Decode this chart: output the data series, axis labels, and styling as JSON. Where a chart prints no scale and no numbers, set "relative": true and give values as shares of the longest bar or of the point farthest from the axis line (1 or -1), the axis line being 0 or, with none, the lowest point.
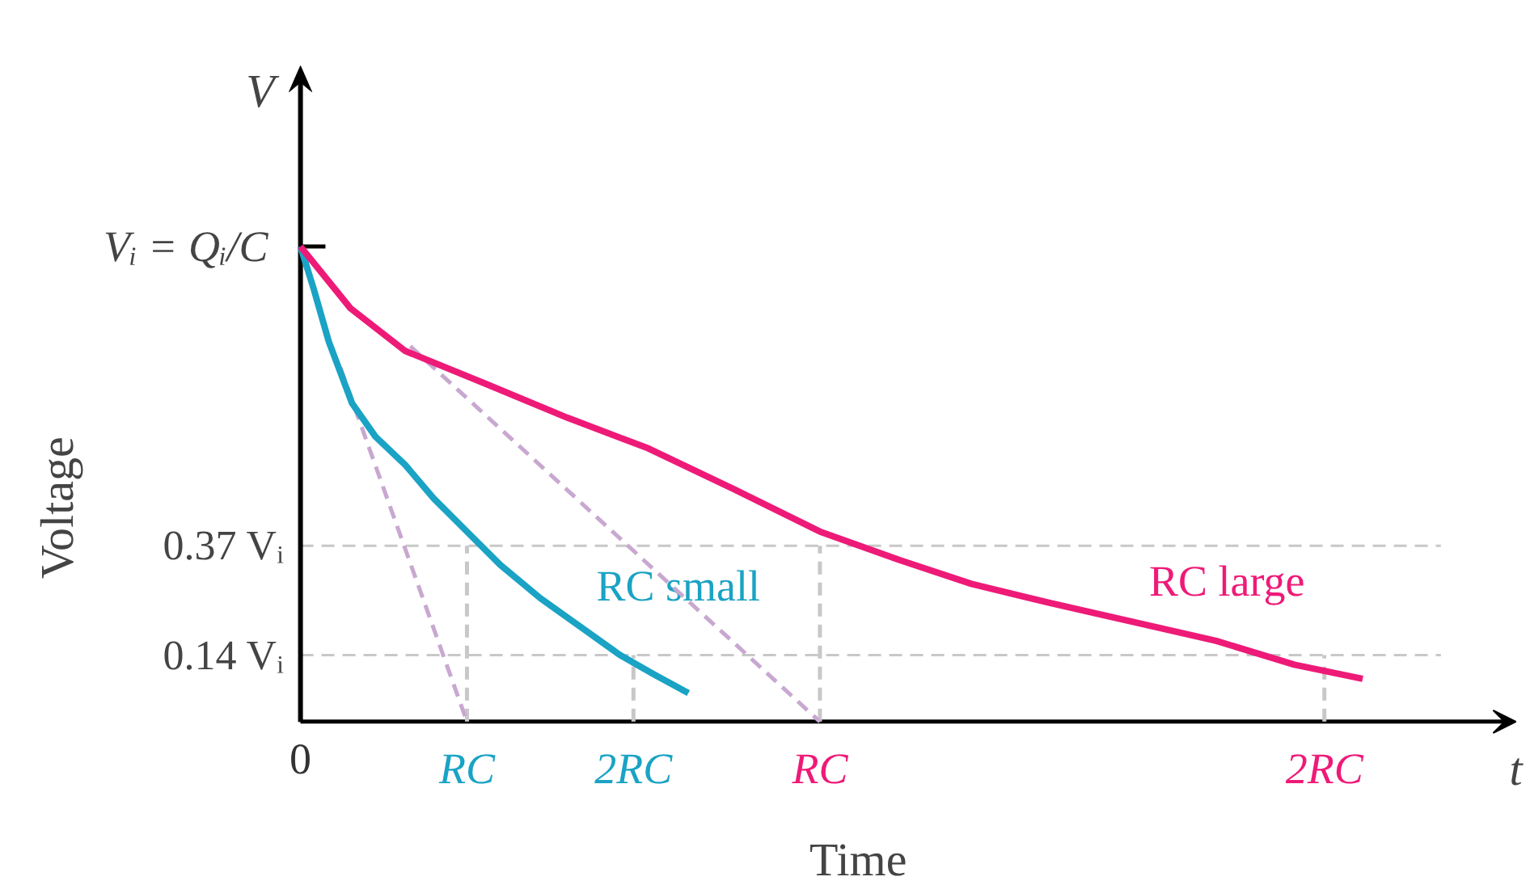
{
  "chart_data": {
    "type": "line",
    "relative": true,
    "xlabel": "Time",
    "ylabel": "Voltage",
    "annotations": [
      "V",
      "t",
      {
        "text": "Vᵢ = Qᵢ/C",
        "x": 0,
        "y": 1
      },
      {
        "text": "RC",
        "x": 3.12,
        "y": 0
      },
      {
        "text": "2RC",
        "x": 6.15,
        "y": 0
      }
    ],
    "xlim": [
      0,
      7.3
    ],
    "xticks": [
      0,
      {
        "value": 1,
        "label": "RC"
      },
      {
        "value": 2,
        "label": "2RC"
      }
    ],
    "ref_lines": [
      {
        "axis": "y",
        "value": 0.37,
        "label": "0.37 Vᵢ",
        "color": "#c8c8c8",
        "line_style": "dashed"
      },
      {
        "axis": "y",
        "value": 0.14,
        "label": "0.14 Vᵢ",
        "color": "#c8c8c8",
        "line_style": "dashed"
      }
    ],
    "grid": false,
    "marker": "none",
    "series": [
      {
        "color": "#c8c8c8",
        "line_style": "dashed",
        "x": [
          1,
          1
        ],
        "values": [
          0,
          0.37
        ]
      },
      {
        "color": "#c8c8c8",
        "line_style": "dashed",
        "x": [
          2,
          2
        ],
        "values": [
          0,
          0.14
        ]
      },
      {
        "color": "#c8c8c8",
        "line_style": "dashed",
        "x": [
          3.12,
          3.12
        ],
        "values": [
          0,
          0.37
        ]
      },
      {
        "color": "#c8c8c8",
        "line_style": "dashed",
        "x": [
          6.15,
          6.15
        ],
        "values": [
          0,
          0.14
        ]
      },
      {
        "color": "#c8a8d0",
        "line_style": "dashed",
        "x": [
          0.24,
          1.0
        ],
        "values": [
          0.745,
          0
        ]
      },
      {
        "color": "#c8a8d0",
        "line_style": "dashed",
        "x": [
          0.66,
          3.12
        ],
        "values": [
          0.79,
          0
        ]
      },
      {
        "name": "RC small",
        "color": "#1aa3c4",
        "line_style": "solid",
        "x": [
          0,
          0.08,
          0.17,
          0.31,
          0.45,
          0.63,
          0.8,
          1.0,
          1.2,
          1.44,
          1.68,
          1.92,
          2.12,
          2.33
        ],
        "values": [
          1,
          0.91,
          0.8,
          0.67,
          0.6,
          0.54,
          0.47,
          0.4,
          0.33,
          0.26,
          0.2,
          0.14,
          0.1,
          0.06
        ]
      },
      {
        "name": "RC large",
        "color": "#ee1a78",
        "line_style": "solid",
        "x": [
          0,
          0.3,
          0.63,
          1.12,
          1.6,
          2.09,
          2.6,
          3.12,
          3.6,
          4.03,
          4.5,
          5.0,
          5.5,
          5.97,
          6.38
        ],
        "values": [
          1,
          0.87,
          0.78,
          0.71,
          0.64,
          0.575,
          0.49,
          0.4,
          0.34,
          0.29,
          0.25,
          0.21,
          0.17,
          0.12,
          0.09
        ]
      }
    ]
  }
}
